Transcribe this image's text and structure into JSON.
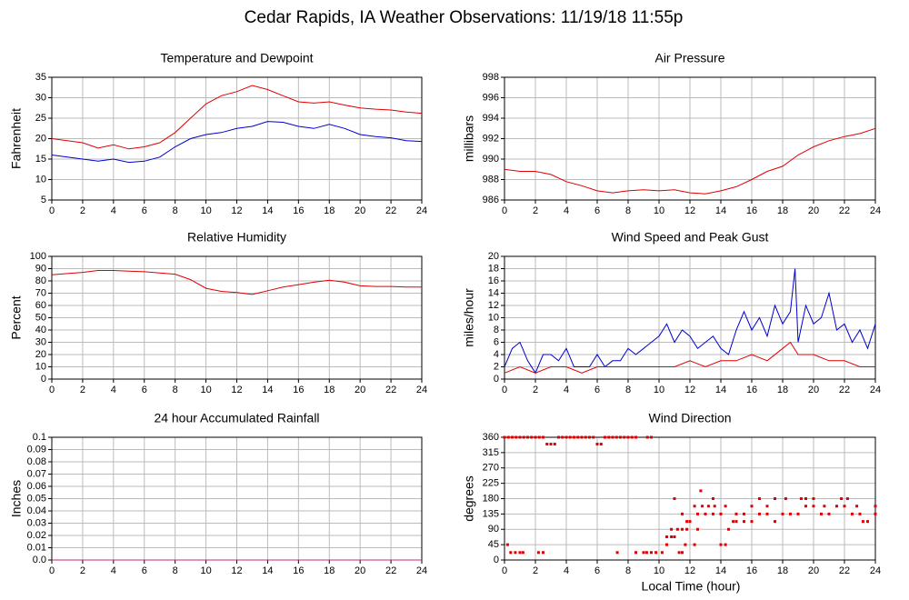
{
  "title": "Cedar Rapids, IA Weather Observations: 11/19/18 11:55p",
  "x_label": "Local Time (hour)",
  "chart_data": [
    {
      "type": "line",
      "title": "Temperature and Dewpoint",
      "y_label": "Fahrenheit",
      "xlim": [
        0,
        24
      ],
      "xticks": [
        0,
        2,
        4,
        6,
        8,
        10,
        12,
        14,
        16,
        18,
        20,
        22,
        24
      ],
      "ylim": [
        5,
        35
      ],
      "yticks": [
        5,
        10,
        15,
        20,
        25,
        30,
        35
      ],
      "grid": true,
      "series": [
        {
          "color": "#e00000",
          "x": [
            0,
            1,
            2,
            3,
            4,
            5,
            6,
            7,
            8,
            9,
            10,
            11,
            12,
            13,
            14,
            15,
            16,
            17,
            18,
            19,
            20,
            21,
            22,
            23,
            24
          ],
          "values": [
            20,
            19.5,
            19,
            17.7,
            18.5,
            17.5,
            18,
            19,
            21.5,
            25,
            28.5,
            30.5,
            31.5,
            33,
            32,
            30.5,
            29,
            28.7,
            29,
            28.2,
            27.5,
            27.2,
            27,
            26.5,
            26.2
          ]
        },
        {
          "color": "#0000d0",
          "x": [
            0,
            1,
            2,
            3,
            4,
            5,
            6,
            7,
            8,
            9,
            10,
            11,
            12,
            13,
            14,
            15,
            16,
            17,
            18,
            19,
            20,
            21,
            22,
            23,
            24
          ],
          "values": [
            16,
            15.5,
            15,
            14.5,
            15,
            14.2,
            14.5,
            15.5,
            18,
            20,
            21,
            21.5,
            22.5,
            23,
            24.2,
            24,
            23,
            22.5,
            23.5,
            22.5,
            21,
            20.5,
            20.2,
            19.5,
            19.3
          ]
        }
      ]
    },
    {
      "type": "line",
      "title": "Air Pressure",
      "y_label": "millibars",
      "xlim": [
        0,
        24
      ],
      "xticks": [
        0,
        2,
        4,
        6,
        8,
        10,
        12,
        14,
        16,
        18,
        20,
        22,
        24
      ],
      "ylim": [
        986,
        998
      ],
      "yticks": [
        986,
        988,
        990,
        992,
        994,
        996,
        998
      ],
      "grid": true,
      "series": [
        {
          "color": "#e00000",
          "x": [
            0,
            1,
            2,
            3,
            4,
            5,
            6,
            7,
            8,
            9,
            10,
            11,
            12,
            13,
            14,
            15,
            16,
            17,
            18,
            19,
            20,
            21,
            22,
            23,
            24
          ],
          "values": [
            989,
            988.8,
            988.8,
            988.5,
            987.8,
            987.4,
            986.9,
            986.7,
            986.9,
            987,
            986.9,
            987,
            986.7,
            986.6,
            986.9,
            987.3,
            988,
            988.8,
            989.3,
            990.4,
            991.2,
            991.8,
            992.2,
            992.5,
            993
          ]
        }
      ]
    },
    {
      "type": "line",
      "title": "Relative Humidity",
      "y_label": "Percent",
      "xlim": [
        0,
        24
      ],
      "xticks": [
        0,
        2,
        4,
        6,
        8,
        10,
        12,
        14,
        16,
        18,
        20,
        22,
        24
      ],
      "ylim": [
        0,
        100
      ],
      "yticks": [
        0,
        10,
        20,
        30,
        40,
        50,
        60,
        70,
        80,
        90,
        100
      ],
      "grid": true,
      "series": [
        {
          "color": "#e00000",
          "x": [
            0,
            1,
            2,
            3,
            4,
            5,
            6,
            7,
            8,
            9,
            10,
            11,
            12,
            13,
            14,
            15,
            16,
            17,
            18,
            19,
            20,
            21,
            22,
            23,
            24
          ],
          "values": [
            85,
            86,
            87,
            88.5,
            88.5,
            88,
            87.5,
            86.5,
            85.5,
            81,
            74,
            71.5,
            70.5,
            69,
            72,
            75,
            77,
            79,
            80.5,
            79,
            76,
            75.5,
            75.5,
            75,
            75
          ]
        }
      ]
    },
    {
      "type": "line",
      "title": "Wind Speed and Peak Gust",
      "y_label": "miles/hour",
      "xlim": [
        0,
        24
      ],
      "xticks": [
        0,
        2,
        4,
        6,
        8,
        10,
        12,
        14,
        16,
        18,
        20,
        22,
        24
      ],
      "ylim": [
        0,
        20
      ],
      "yticks": [
        0,
        2,
        4,
        6,
        8,
        10,
        12,
        14,
        16,
        18,
        20
      ],
      "grid": true,
      "series": [
        {
          "color": "#0000d0",
          "x": [
            0,
            0.5,
            1,
            1.5,
            2,
            2.5,
            3,
            3.5,
            4,
            4.5,
            5,
            5.5,
            6,
            6.5,
            7,
            7.5,
            8,
            8.5,
            9,
            9.5,
            10,
            10.5,
            11,
            11.5,
            12,
            12.5,
            13,
            13.5,
            14,
            14.5,
            15,
            15.5,
            16,
            16.5,
            17,
            17.5,
            18,
            18.5,
            18.8,
            19,
            19.5,
            20,
            20.5,
            21,
            21.5,
            22,
            22.5,
            23,
            23.5,
            24
          ],
          "values": [
            2,
            5,
            6,
            3,
            1,
            4,
            4,
            3,
            5,
            2,
            2,
            2,
            4,
            2,
            3,
            3,
            5,
            4,
            5,
            6,
            7,
            9,
            6,
            8,
            7,
            5,
            6,
            7,
            5,
            4,
            8,
            11,
            8,
            10,
            7,
            12,
            9,
            11,
            18,
            6,
            12,
            9,
            10,
            14,
            8,
            9,
            6,
            8,
            5,
            9
          ]
        },
        {
          "color": "#e00000",
          "x": [
            0,
            1,
            2,
            3,
            4,
            5,
            6,
            7,
            8,
            9,
            10,
            11,
            12,
            13,
            14,
            15,
            16,
            17,
            18,
            18.5,
            19,
            20,
            21,
            22,
            23,
            24
          ],
          "values": [
            1,
            2,
            1,
            2,
            2,
            1,
            2,
            2,
            2,
            2,
            2,
            2,
            3,
            2,
            3,
            3,
            4,
            3,
            5,
            6,
            4,
            4,
            3,
            3,
            2,
            2
          ]
        }
      ]
    },
    {
      "type": "line",
      "title": "24 hour Accumulated Rainfall",
      "y_label": "Inches",
      "xlim": [
        0,
        24
      ],
      "xticks": [
        0,
        2,
        4,
        6,
        8,
        10,
        12,
        14,
        16,
        18,
        20,
        22,
        24
      ],
      "ylim": [
        0,
        0.1
      ],
      "yticks": [
        {
          "value": 0,
          "label": "0.0"
        },
        0.01,
        0.02,
        0.03,
        0.04,
        0.05,
        0.06,
        0.07,
        0.08,
        0.09,
        {
          "value": 0.1,
          "label": "0.1"
        }
      ],
      "grid": true,
      "series": [
        {
          "color": "#d0208a",
          "x": [
            0,
            24
          ],
          "values": [
            0,
            0
          ]
        }
      ]
    },
    {
      "type": "scatter",
      "title": "Wind Direction",
      "y_label": "degrees",
      "xlim": [
        0,
        24
      ],
      "xticks": [
        0,
        2,
        4,
        6,
        8,
        10,
        12,
        14,
        16,
        18,
        20,
        22,
        24
      ],
      "ylim": [
        0,
        360
      ],
      "yticks": [
        0,
        45,
        90,
        135,
        180,
        225,
        270,
        315,
        360
      ],
      "grid": true,
      "series": [
        {
          "color": "#e00000",
          "x": [
            0,
            0.25,
            0.5,
            0.75,
            1,
            1.25,
            1.5,
            1.75,
            2,
            2.25,
            2.5,
            3.5,
            3.75,
            4,
            4.25,
            4.5,
            4.75,
            5,
            5.25,
            5.5,
            5.75,
            6.5,
            6.75,
            7,
            7.25,
            7.5,
            7.75,
            8,
            8.25,
            8.5,
            9.25,
            9.5,
            2.75,
            3,
            3.25,
            6,
            6.25,
            0.4,
            0.7,
            1,
            1.2,
            2.2,
            2.5,
            7.3,
            8.5,
            9,
            9.2,
            9.5,
            9.8,
            10.2,
            11.3,
            11.5,
            0.2,
            10.5,
            11.7,
            12.3,
            14,
            14.3,
            10.5,
            10.8,
            11,
            10.8,
            11.2,
            11.5,
            11.8,
            12.5,
            14.5,
            11.8,
            12,
            14.8,
            15,
            15.5,
            16,
            17.5,
            23.2,
            23.5,
            11.5,
            12.5,
            13,
            13.5,
            14,
            15,
            15.5,
            16.5,
            17,
            18,
            18.5,
            19,
            20.5,
            21,
            22.5,
            23,
            24,
            12.3,
            12.8,
            13.2,
            13.6,
            14.3,
            16,
            17,
            19.5,
            20,
            20.7,
            21.5,
            22,
            22.8,
            24,
            11,
            13.5,
            16.5,
            17.5,
            18.2,
            19.2,
            19.5,
            20,
            21.8,
            22.2,
            12.7
          ],
          "values": [
            360,
            360,
            360,
            360,
            360,
            360,
            360,
            360,
            360,
            360,
            360,
            360,
            360,
            360,
            360,
            360,
            360,
            360,
            360,
            360,
            360,
            360,
            360,
            360,
            360,
            360,
            360,
            360,
            360,
            360,
            360,
            360,
            340,
            340,
            340,
            340,
            340,
            22,
            22,
            22,
            22,
            22,
            22,
            22,
            22,
            22,
            22,
            22,
            22,
            22,
            22,
            22,
            45,
            45,
            45,
            45,
            45,
            45,
            68,
            68,
            68,
            90,
            90,
            90,
            90,
            90,
            90,
            113,
            113,
            113,
            113,
            113,
            113,
            113,
            113,
            113,
            135,
            135,
            135,
            135,
            135,
            135,
            135,
            135,
            135,
            135,
            135,
            135,
            135,
            135,
            135,
            135,
            135,
            158,
            158,
            158,
            158,
            158,
            158,
            158,
            158,
            158,
            158,
            158,
            158,
            158,
            158,
            180,
            180,
            180,
            180,
            180,
            180,
            180,
            180,
            180,
            180,
            203
          ]
        }
      ]
    }
  ]
}
